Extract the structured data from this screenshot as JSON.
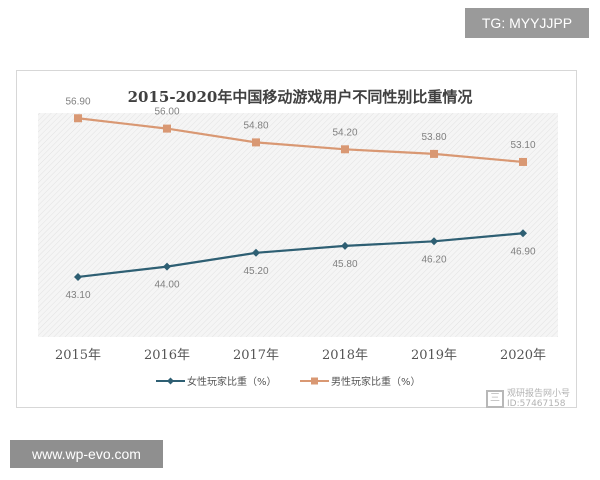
{
  "top_tag": "TG: MYYJJPP",
  "bottom_tag": "www.wp-evo.com",
  "watermark": {
    "line1": "观研报告网小号",
    "line2": "ID:57467158"
  },
  "chart_data": {
    "type": "line",
    "title": "2015-2020年中国移动游戏用户不同性别比重情况",
    "categories": [
      "2015年",
      "2016年",
      "2017年",
      "2018年",
      "2019年",
      "2020年"
    ],
    "series": [
      {
        "name": "女性玩家比重（%）",
        "values": [
          43.1,
          44.0,
          45.2,
          45.8,
          46.2,
          46.9
        ],
        "labels": [
          "43.10",
          "44.00",
          "45.20",
          "45.80",
          "46.20",
          "46.90"
        ],
        "color": "#2e5f73",
        "marker": "diamond"
      },
      {
        "name": "男性玩家比重（%）",
        "values": [
          56.9,
          56.0,
          54.8,
          54.2,
          53.8,
          53.1
        ],
        "labels": [
          "56.90",
          "56.00",
          "54.80",
          "54.20",
          "53.80",
          "53.10"
        ],
        "color": "#d99873",
        "marker": "square"
      }
    ],
    "ylim": [
      40,
      60
    ],
    "legend_position": "bottom",
    "plot_background": "hatched light gray"
  }
}
